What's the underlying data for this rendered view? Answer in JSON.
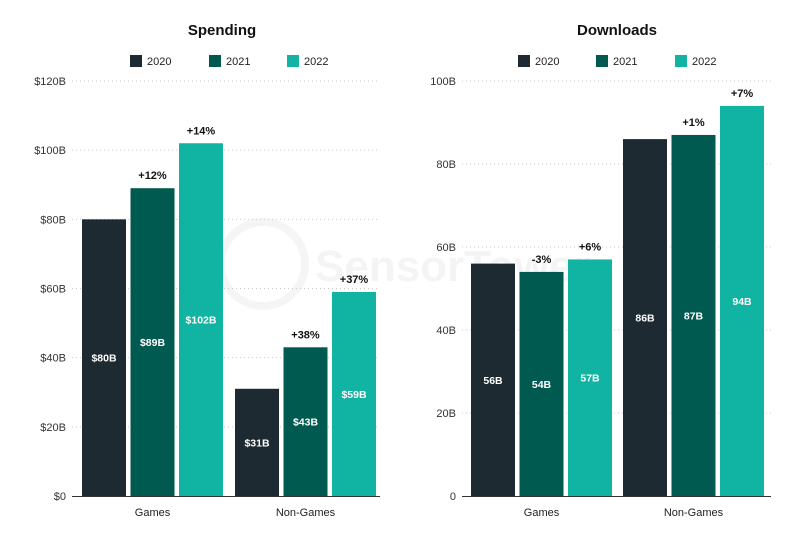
{
  "chart_data": [
    {
      "type": "bar",
      "title": "Spending",
      "categories": [
        "Games",
        "Non-Games"
      ],
      "series": [
        {
          "name": "2020",
          "color": "#1e2a31",
          "values": [
            80,
            31
          ],
          "value_labels": [
            "$80B",
            "$31B"
          ],
          "change_labels": [
            "",
            ""
          ]
        },
        {
          "name": "2021",
          "color": "#005a50",
          "values": [
            89,
            43
          ],
          "value_labels": [
            "$89B",
            "$43B"
          ],
          "change_labels": [
            "+12%",
            "+38%"
          ]
        },
        {
          "name": "2022",
          "color": "#11b4a2",
          "values": [
            102,
            59
          ],
          "value_labels": [
            "$102B",
            "$59B"
          ],
          "change_labels": [
            "+14%",
            "+37%"
          ]
        }
      ],
      "ylim": [
        0,
        120
      ],
      "yticks": [
        0,
        20,
        40,
        60,
        80,
        100,
        120
      ],
      "ytick_labels": [
        "$0",
        "$20B",
        "$40B",
        "$60B",
        "$80B",
        "$100B",
        "$120B"
      ],
      "xlabel": "",
      "ylabel": "",
      "grid": true,
      "legend_position": "top-center"
    },
    {
      "type": "bar",
      "title": "Downloads",
      "categories": [
        "Games",
        "Non-Games"
      ],
      "series": [
        {
          "name": "2020",
          "color": "#1e2a31",
          "values": [
            56,
            86
          ],
          "value_labels": [
            "56B",
            "86B"
          ],
          "change_labels": [
            "",
            ""
          ]
        },
        {
          "name": "2021",
          "color": "#005a50",
          "values": [
            54,
            87
          ],
          "value_labels": [
            "54B",
            "87B"
          ],
          "change_labels": [
            "-3%",
            "+1%"
          ]
        },
        {
          "name": "2022",
          "color": "#11b4a2",
          "values": [
            57,
            94
          ],
          "value_labels": [
            "57B",
            "94B"
          ],
          "change_labels": [
            "+6%",
            "+7%"
          ]
        }
      ],
      "ylim": [
        0,
        100
      ],
      "yticks": [
        0,
        20,
        40,
        60,
        80,
        100
      ],
      "ytick_labels": [
        "0",
        "20B",
        "40B",
        "60B",
        "80B",
        "100B"
      ],
      "xlabel": "",
      "ylabel": "",
      "grid": true,
      "legend_position": "top-center"
    }
  ],
  "watermark": "SensorTower"
}
